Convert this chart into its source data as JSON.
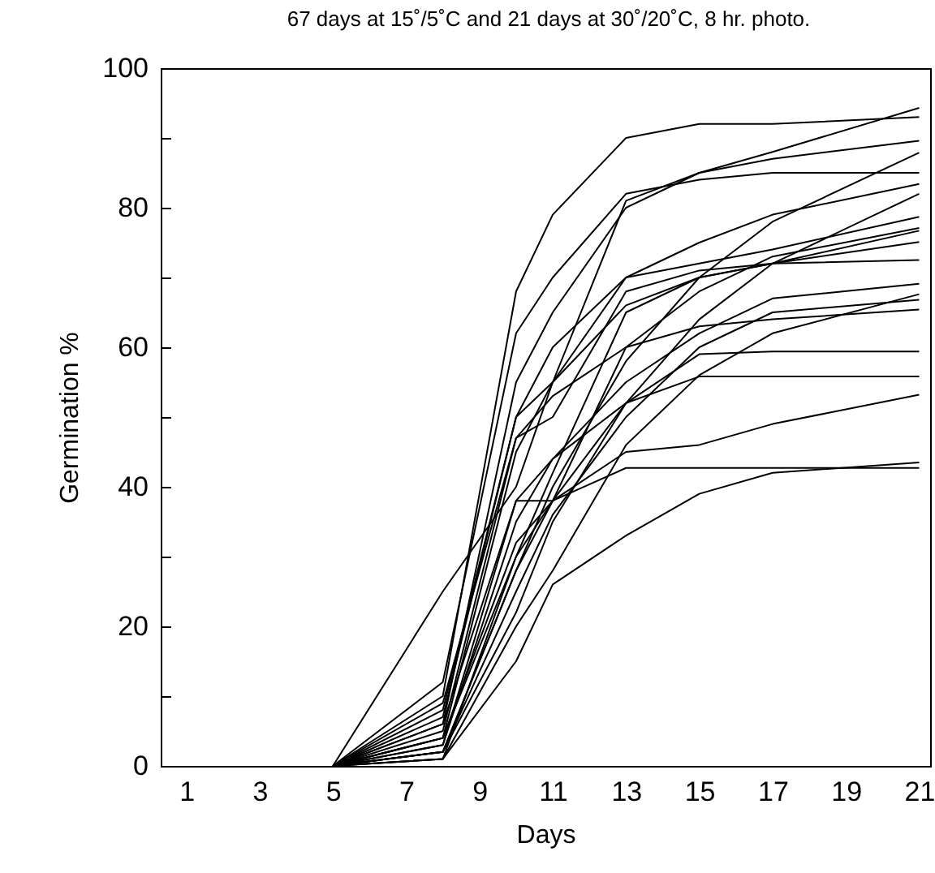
{
  "chart_data": {
    "type": "line",
    "title": "67 days at 15˚/5˚C and 21 days at 30˚/20˚C, 8 hr. photo.",
    "xlabel": "Days",
    "ylabel": "Germination %",
    "x": [
      5,
      8,
      10,
      11,
      13,
      15,
      17,
      21
    ],
    "xlim": [
      0.3,
      21.3
    ],
    "xticks": [
      1,
      3,
      5,
      7,
      9,
      11,
      13,
      15,
      17,
      19,
      21
    ],
    "ylim": [
      0,
      100
    ],
    "yticks": [
      0,
      {
        "value": 10,
        "label": null
      },
      20,
      {
        "value": 30,
        "label": null
      },
      40,
      {
        "value": 50,
        "label": null
      },
      60,
      {
        "value": 70,
        "label": null
      },
      80,
      {
        "value": 90,
        "label": null
      },
      100
    ],
    "grid": false,
    "legend": false,
    "marker": "none",
    "line_style": "solid",
    "series": [
      {
        "color": "#000000",
        "values": [
          0,
          25,
          40,
          55,
          81,
          85,
          88,
          94.3
        ]
      },
      {
        "color": "#000000",
        "values": [
          0,
          10,
          68,
          79,
          90,
          92,
          92,
          93
        ]
      },
      {
        "color": "#000000",
        "values": [
          0,
          6,
          55,
          65,
          80,
          85,
          87,
          89.6
        ]
      },
      {
        "color": "#000000",
        "values": [
          0,
          2,
          28,
          40,
          58,
          70,
          78,
          87.9
        ]
      },
      {
        "color": "#000000",
        "values": [
          0,
          12,
          62,
          70,
          82,
          84,
          85,
          85
        ]
      },
      {
        "color": "#000000",
        "values": [
          0,
          4,
          45,
          55,
          70,
          75,
          79,
          83.4
        ]
      },
      {
        "color": "#000000",
        "values": [
          0,
          2,
          22,
          35,
          52,
          64,
          72,
          82
        ]
      },
      {
        "color": "#000000",
        "values": [
          0,
          8,
          50,
          60,
          70,
          72,
          74,
          78.7
        ]
      },
      {
        "color": "#000000",
        "values": [
          0,
          3,
          38,
          38,
          60,
          68,
          73,
          77.1
        ]
      },
      {
        "color": "#000000",
        "values": [
          0,
          1,
          30,
          42,
          65,
          70,
          72,
          76.7
        ]
      },
      {
        "color": "#000000",
        "values": [
          0,
          7,
          50,
          55,
          66,
          70,
          72,
          75.1
        ]
      },
      {
        "color": "#000000",
        "values": [
          0,
          5,
          47,
          50,
          68,
          71,
          72,
          72.5
        ]
      },
      {
        "color": "#000000",
        "values": [
          0,
          3,
          35,
          44,
          55,
          62,
          67,
          69.1
        ]
      },
      {
        "color": "#000000",
        "values": [
          0,
          1,
          20,
          28,
          46,
          56,
          62,
          67.6
        ]
      },
      {
        "color": "#000000",
        "values": [
          0,
          2,
          25,
          36,
          50,
          60,
          65,
          66.8
        ]
      },
      {
        "color": "#000000",
        "values": [
          0,
          9,
          47,
          53,
          60,
          63,
          64,
          65.4
        ]
      },
      {
        "color": "#000000",
        "values": [
          0,
          4,
          32,
          38,
          52,
          59,
          59.4,
          59.4
        ]
      },
      {
        "color": "#000000",
        "values": [
          0,
          6,
          38,
          44,
          52,
          55.8,
          55.8,
          55.8
        ]
      },
      {
        "color": "#000000",
        "values": [
          0,
          2,
          28,
          38,
          45,
          46,
          49,
          53.2
        ]
      },
      {
        "color": "#000000",
        "values": [
          0,
          1,
          15,
          26,
          33,
          39,
          42,
          43.5
        ]
      },
      {
        "color": "#000000",
        "values": [
          0,
          4,
          30,
          38,
          42.7,
          42.7,
          42.7,
          42.7
        ]
      }
    ]
  }
}
